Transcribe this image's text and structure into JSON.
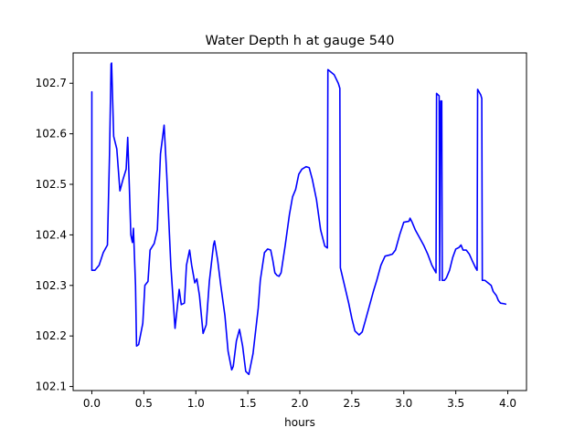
{
  "chart_data": {
    "type": "line",
    "title": "Water Depth h at gauge 540",
    "xlabel": "hours",
    "ylabel": "",
    "xlim": [
      -0.18,
      4.18
    ],
    "ylim": [
      102.092,
      102.76
    ],
    "xticks": [
      0.0,
      0.5,
      1.0,
      1.5,
      2.0,
      2.5,
      3.0,
      3.5,
      4.0
    ],
    "xtick_labels": [
      "0.0",
      "0.5",
      "1.0",
      "1.5",
      "2.0",
      "2.5",
      "3.0",
      "3.5",
      "4.0"
    ],
    "yticks": [
      102.1,
      102.2,
      102.3,
      102.4,
      102.5,
      102.6,
      102.7
    ],
    "ytick_labels": [
      "102.1",
      "102.2",
      "102.3",
      "102.4",
      "102.5",
      "102.6",
      "102.7"
    ],
    "grid": false,
    "series": [
      {
        "color": "#0000ff",
        "points": [
          [
            0.0,
            102.683
          ],
          [
            0.0,
            102.33
          ],
          [
            0.03,
            102.33
          ],
          [
            0.07,
            102.34
          ],
          [
            0.11,
            102.365
          ],
          [
            0.15,
            102.38
          ],
          [
            0.17,
            102.56
          ],
          [
            0.185,
            102.738
          ],
          [
            0.19,
            102.74
          ],
          [
            0.21,
            102.595
          ],
          [
            0.24,
            102.57
          ],
          [
            0.27,
            102.487
          ],
          [
            0.3,
            102.51
          ],
          [
            0.33,
            102.53
          ],
          [
            0.345,
            102.593
          ],
          [
            0.36,
            102.5
          ],
          [
            0.375,
            102.4
          ],
          [
            0.39,
            102.385
          ],
          [
            0.4,
            102.413
          ],
          [
            0.42,
            102.3
          ],
          [
            0.43,
            102.18
          ],
          [
            0.45,
            102.183
          ],
          [
            0.49,
            102.225
          ],
          [
            0.51,
            102.3
          ],
          [
            0.54,
            102.308
          ],
          [
            0.56,
            102.37
          ],
          [
            0.6,
            102.383
          ],
          [
            0.63,
            102.41
          ],
          [
            0.66,
            102.56
          ],
          [
            0.695,
            102.617
          ],
          [
            0.72,
            102.52
          ],
          [
            0.76,
            102.338
          ],
          [
            0.8,
            102.215
          ],
          [
            0.84,
            102.292
          ],
          [
            0.86,
            102.262
          ],
          [
            0.89,
            102.265
          ],
          [
            0.91,
            102.34
          ],
          [
            0.94,
            102.37
          ],
          [
            0.96,
            102.34
          ],
          [
            0.99,
            102.305
          ],
          [
            1.01,
            102.313
          ],
          [
            1.035,
            102.28
          ],
          [
            1.07,
            102.205
          ],
          [
            1.1,
            102.222
          ],
          [
            1.13,
            102.308
          ],
          [
            1.17,
            102.38
          ],
          [
            1.18,
            102.388
          ],
          [
            1.21,
            102.35
          ],
          [
            1.24,
            102.3
          ],
          [
            1.28,
            102.24
          ],
          [
            1.31,
            102.17
          ],
          [
            1.345,
            102.133
          ],
          [
            1.36,
            102.14
          ],
          [
            1.39,
            102.19
          ],
          [
            1.42,
            102.213
          ],
          [
            1.45,
            102.18
          ],
          [
            1.48,
            102.13
          ],
          [
            1.51,
            102.124
          ],
          [
            1.55,
            102.165
          ],
          [
            1.6,
            102.255
          ],
          [
            1.62,
            102.31
          ],
          [
            1.66,
            102.365
          ],
          [
            1.69,
            102.372
          ],
          [
            1.72,
            102.37
          ],
          [
            1.74,
            102.35
          ],
          [
            1.76,
            102.325
          ],
          [
            1.78,
            102.32
          ],
          [
            1.8,
            102.318
          ],
          [
            1.82,
            102.325
          ],
          [
            1.86,
            102.38
          ],
          [
            1.9,
            102.44
          ],
          [
            1.93,
            102.475
          ],
          [
            1.96,
            102.49
          ],
          [
            1.99,
            102.52
          ],
          [
            2.02,
            102.53
          ],
          [
            2.06,
            102.535
          ],
          [
            2.09,
            102.533
          ],
          [
            2.12,
            102.51
          ],
          [
            2.16,
            102.47
          ],
          [
            2.2,
            102.41
          ],
          [
            2.24,
            102.378
          ],
          [
            2.265,
            102.374
          ],
          [
            2.27,
            102.727
          ],
          [
            2.33,
            102.717
          ],
          [
            2.37,
            102.7
          ],
          [
            2.385,
            102.69
          ],
          [
            2.39,
            102.335
          ],
          [
            2.43,
            102.3
          ],
          [
            2.47,
            102.265
          ],
          [
            2.5,
            102.235
          ],
          [
            2.53,
            102.21
          ],
          [
            2.57,
            102.202
          ],
          [
            2.6,
            102.208
          ],
          [
            2.63,
            102.23
          ],
          [
            2.67,
            102.26
          ],
          [
            2.71,
            102.29
          ],
          [
            2.74,
            102.31
          ],
          [
            2.78,
            102.34
          ],
          [
            2.82,
            102.358
          ],
          [
            2.86,
            102.36
          ],
          [
            2.89,
            102.362
          ],
          [
            2.92,
            102.37
          ],
          [
            2.96,
            102.4
          ],
          [
            3.0,
            102.425
          ],
          [
            3.05,
            102.427
          ],
          [
            3.06,
            102.433
          ],
          [
            3.08,
            102.425
          ],
          [
            3.11,
            102.41
          ],
          [
            3.15,
            102.395
          ],
          [
            3.19,
            102.38
          ],
          [
            3.23,
            102.362
          ],
          [
            3.27,
            102.34
          ],
          [
            3.31,
            102.325
          ],
          [
            3.315,
            102.68
          ],
          [
            3.34,
            102.675
          ],
          [
            3.345,
            102.31
          ],
          [
            3.355,
            102.665
          ],
          [
            3.365,
            102.665
          ],
          [
            3.37,
            102.31
          ],
          [
            3.39,
            102.31
          ],
          [
            3.41,
            102.315
          ],
          [
            3.44,
            102.33
          ],
          [
            3.47,
            102.355
          ],
          [
            3.5,
            102.372
          ],
          [
            3.53,
            102.375
          ],
          [
            3.55,
            102.38
          ],
          [
            3.57,
            102.37
          ],
          [
            3.6,
            102.37
          ],
          [
            3.63,
            102.362
          ],
          [
            3.66,
            102.348
          ],
          [
            3.69,
            102.335
          ],
          [
            3.705,
            102.33
          ],
          [
            3.71,
            102.688
          ],
          [
            3.74,
            102.677
          ],
          [
            3.75,
            102.67
          ],
          [
            3.755,
            102.31
          ],
          [
            3.78,
            102.31
          ],
          [
            3.81,
            102.305
          ],
          [
            3.84,
            102.3
          ],
          [
            3.86,
            102.288
          ],
          [
            3.89,
            102.28
          ],
          [
            3.91,
            102.27
          ],
          [
            3.93,
            102.265
          ],
          [
            3.96,
            102.264
          ],
          [
            3.98,
            102.263
          ]
        ]
      }
    ]
  }
}
